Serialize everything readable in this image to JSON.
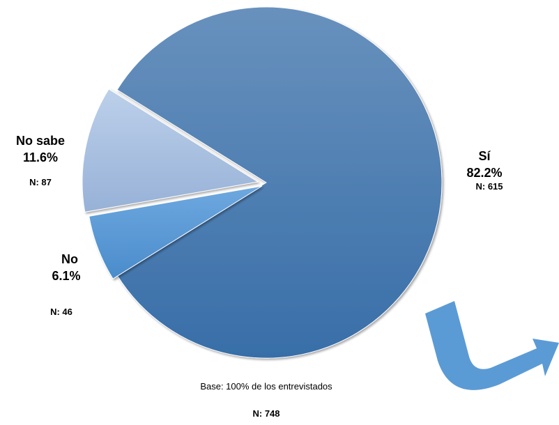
{
  "chart_data": {
    "type": "pie",
    "slices": [
      {
        "label": "Sí",
        "percent": 82.2,
        "pct_label": "82.2%",
        "n_label": "N: 615",
        "value": 615
      },
      {
        "label": "No",
        "percent": 6.1,
        "pct_label": "6.1%",
        "n_label": "N: 46",
        "value": 46
      },
      {
        "label": "No sabe",
        "percent": 11.6,
        "pct_label": "11.6%",
        "n_label": "N: 87",
        "value": 87
      }
    ],
    "footnote": "Base: 100% de los entrevistados",
    "total_label": "N: 748",
    "colors": {
      "si": "#3f74ab",
      "no": "#5b9bd5",
      "no_sabe": "#a9c1e2",
      "arrow": "#5b9bd5"
    },
    "legend": "none",
    "grid": false
  }
}
